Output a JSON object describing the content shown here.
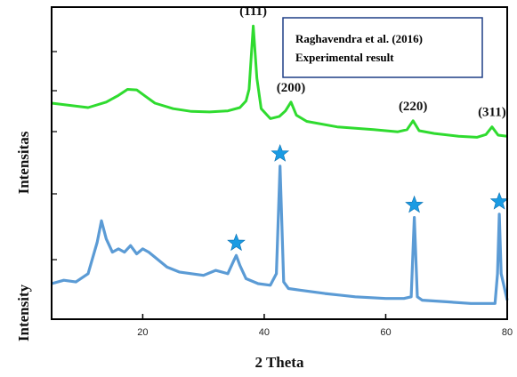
{
  "chart_data": {
    "type": "line",
    "title": "",
    "xlabel": "2 Theta",
    "ylabels": [
      "Intensitas",
      "Intensity"
    ],
    "xlim": [
      5,
      80
    ],
    "xticks": [
      20,
      40,
      60,
      80
    ],
    "grid": false,
    "legend": {
      "placement": "top-right",
      "entries": [
        {
          "label": "Raghavendra et al. (2016)",
          "color": "#1fb836"
        },
        {
          "label": "Experimental result",
          "color": "#1f3f86"
        }
      ]
    },
    "peak_labels": [
      {
        "text": "(111)",
        "x": 38.2
      },
      {
        "text": "(200)",
        "x": 44.4
      },
      {
        "text": "(220)",
        "x": 64.5
      },
      {
        "text": "(311)",
        "x": 77.5
      }
    ],
    "star_markers": [
      {
        "x": 35.4
      },
      {
        "x": 42.6
      },
      {
        "x": 64.7
      },
      {
        "x": 78.7
      }
    ],
    "series": [
      {
        "name": "Raghavendra et al. (2016)",
        "color": "#2fdb2f",
        "x": [
          5,
          8,
          11,
          14,
          16,
          17.5,
          19,
          20.5,
          22,
          25,
          28,
          31,
          34,
          36,
          37,
          37.5,
          38.2,
          38.8,
          39.5,
          41,
          42.5,
          43.5,
          44.4,
          45.3,
          47,
          52,
          58,
          62,
          63.5,
          64.5,
          65.5,
          68,
          72,
          75,
          76.5,
          77.5,
          78.5,
          80
        ],
        "values": [
          100,
          96,
          92,
          102,
          114,
          125,
          124,
          112,
          100,
          90,
          85,
          84,
          86,
          92,
          104,
          125,
          240,
          145,
          90,
          72,
          76,
          86,
          102,
          78,
          67,
          57,
          52,
          48,
          52,
          68,
          50,
          45,
          40,
          38,
          43,
          57,
          42,
          40
        ]
      },
      {
        "name": "Experimental result",
        "color": "#5b9bd5",
        "x": [
          5,
          7,
          9,
          11,
          12.5,
          13.2,
          14,
          15,
          16,
          17,
          18,
          19,
          20,
          21,
          22,
          24,
          26,
          28,
          30,
          32,
          34,
          35,
          35.4,
          36,
          37,
          39,
          41,
          42,
          42.6,
          43.2,
          44,
          46,
          50,
          55,
          60,
          63,
          64.2,
          64.7,
          65.2,
          66,
          70,
          74,
          78,
          78.4,
          78.7,
          79,
          80
        ],
        "values": [
          28,
          32,
          30,
          40,
          78,
          104,
          82,
          66,
          70,
          66,
          74,
          64,
          70,
          66,
          60,
          48,
          42,
          40,
          38,
          44,
          40,
          56,
          62,
          50,
          34,
          28,
          26,
          40,
          170,
          30,
          22,
          20,
          16,
          12,
          10,
          10,
          12,
          108,
          12,
          8,
          6,
          4,
          4,
          40,
          112,
          40,
          8
        ]
      }
    ]
  }
}
